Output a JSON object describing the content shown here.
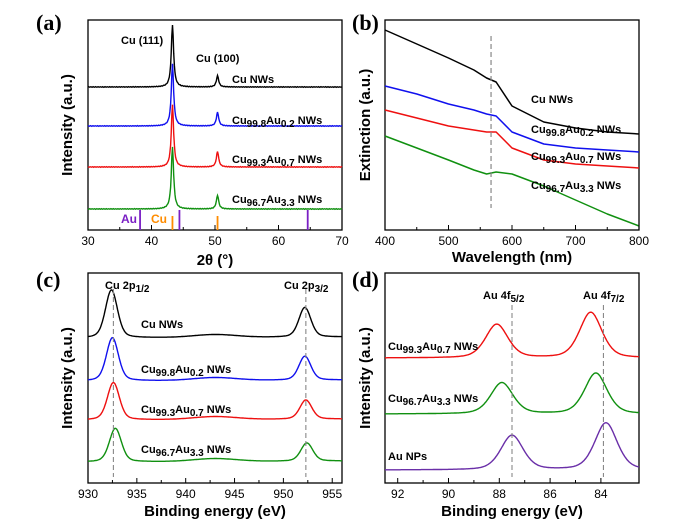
{
  "chart_data": [
    {
      "type": "line",
      "panel_label": "(a)",
      "xlabel": "2θ (°)",
      "ylabel": "Intensity (a.u.)",
      "xlim": [
        30,
        70
      ],
      "xticks": [
        "30",
        "40",
        "50",
        "60",
        "70"
      ],
      "peak_labels": [
        "Cu (111)",
        "Cu (100)"
      ],
      "series": [
        {
          "name": "Cu NWs",
          "color": "#000000",
          "peaks": [
            {
              "x": 43.3,
              "height": 1.0
            },
            {
              "x": 50.4,
              "height": 0.18
            }
          ]
        },
        {
          "name": "Cu99.8Au0.2 NWs",
          "color": "#1010ee",
          "peaks": [
            {
              "x": 43.3,
              "height": 1.0
            },
            {
              "x": 50.4,
              "height": 0.22
            }
          ]
        },
        {
          "name": "Cu99.3Au0.7 NWs",
          "color": "#ee1010",
          "peaks": [
            {
              "x": 43.3,
              "height": 1.0
            },
            {
              "x": 50.4,
              "height": 0.25
            }
          ]
        },
        {
          "name": "Cu96.7Au3.3 NWs",
          "color": "#109010",
          "peaks": [
            {
              "x": 43.3,
              "height": 1.0
            },
            {
              "x": 50.4,
              "height": 0.22
            }
          ]
        }
      ],
      "reference_lines": [
        {
          "name": "Au",
          "color": "#7a1fc4",
          "positions": [
            38.2,
            44.4,
            64.6
          ]
        },
        {
          "name": "Cu",
          "color": "#ff8c00",
          "positions": [
            43.3,
            50.4
          ]
        }
      ]
    },
    {
      "type": "line",
      "panel_label": "(b)",
      "xlabel": "Wavelength (nm)",
      "ylabel": "Extinction (a.u.)",
      "xlim": [
        400,
        800
      ],
      "xticks": [
        "400",
        "500",
        "600",
        "700",
        "800"
      ],
      "dashed_line_x": 567,
      "series": [
        {
          "name": "Cu NWs",
          "color": "#000000",
          "x": [
            400,
            450,
            500,
            540,
            560,
            575,
            600,
            650,
            700,
            750,
            800
          ],
          "y": [
            1.0,
            0.93,
            0.86,
            0.8,
            0.76,
            0.74,
            0.62,
            0.54,
            0.51,
            0.49,
            0.48
          ]
        },
        {
          "name": "Cu99.8Au0.2 NWs",
          "color": "#1010ee",
          "x": [
            400,
            450,
            500,
            540,
            560,
            575,
            600,
            650,
            700,
            750,
            800
          ],
          "y": [
            0.72,
            0.68,
            0.63,
            0.6,
            0.58,
            0.57,
            0.49,
            0.43,
            0.41,
            0.4,
            0.39
          ]
        },
        {
          "name": "Cu99.3Au0.7 NWs",
          "color": "#ee1010",
          "x": [
            400,
            450,
            500,
            540,
            560,
            575,
            600,
            650,
            700,
            750,
            800
          ],
          "y": [
            0.6,
            0.56,
            0.52,
            0.5,
            0.49,
            0.49,
            0.41,
            0.35,
            0.33,
            0.32,
            0.31
          ]
        },
        {
          "name": "Cu96.7Au3.3 NWs",
          "color": "#109010",
          "x": [
            400,
            450,
            500,
            540,
            560,
            575,
            600,
            650,
            700,
            750,
            800
          ],
          "y": [
            0.47,
            0.41,
            0.35,
            0.3,
            0.28,
            0.29,
            0.28,
            0.22,
            0.15,
            0.08,
            0.02
          ]
        }
      ]
    },
    {
      "type": "line",
      "panel_label": "(c)",
      "xlabel": "Binding energy (eV)",
      "ylabel": "Intensity (a.u.)",
      "xlim": [
        930,
        956
      ],
      "x_reversed": false,
      "xticks": [
        "930",
        "935",
        "940",
        "945",
        "950",
        "955"
      ],
      "peak_labels": [
        "Cu 2p1/2",
        "Cu 2p3/2"
      ],
      "dashed_lines_x": [
        932.6,
        952.3
      ],
      "series": [
        {
          "name": "Cu NWs",
          "color": "#000000",
          "peaks": [
            {
              "x": 932.4,
              "height": 1.0
            },
            {
              "x": 952.2,
              "height": 0.62
            }
          ]
        },
        {
          "name": "Cu99.8Au0.2 NWs",
          "color": "#1010ee",
          "peaks": [
            {
              "x": 932.5,
              "height": 0.9
            },
            {
              "x": 952.2,
              "height": 0.5
            }
          ]
        },
        {
          "name": "Cu99.3Au0.7 NWs",
          "color": "#ee1010",
          "peaks": [
            {
              "x": 932.6,
              "height": 0.78
            },
            {
              "x": 952.3,
              "height": 0.4
            }
          ]
        },
        {
          "name": "Cu96.7Au3.3 NWs",
          "color": "#109010",
          "peaks": [
            {
              "x": 932.8,
              "height": 0.7
            },
            {
              "x": 952.4,
              "height": 0.38
            }
          ]
        }
      ]
    },
    {
      "type": "line",
      "panel_label": "(d)",
      "xlabel": "Binding energy (eV)",
      "ylabel": "Intensity (a.u.)",
      "xlim": [
        92.5,
        82.5
      ],
      "x_reversed": true,
      "xticks": [
        "92",
        "90",
        "88",
        "86",
        "84"
      ],
      "peak_labels": [
        "Au 4f5/2",
        "Au 4f7/2"
      ],
      "dashed_lines_x": [
        87.5,
        83.9
      ],
      "series": [
        {
          "name": "Cu99.3Au0.7 NWs",
          "color": "#ee1010",
          "peaks": [
            {
              "x": 88.1,
              "height": 0.7
            },
            {
              "x": 84.4,
              "height": 0.95
            }
          ]
        },
        {
          "name": "Cu96.7Au3.3 NWs",
          "color": "#109010",
          "peaks": [
            {
              "x": 87.9,
              "height": 0.65
            },
            {
              "x": 84.2,
              "height": 0.85
            }
          ]
        },
        {
          "name": "Au NPs",
          "color": "#6a2fa8",
          "peaks": [
            {
              "x": 87.5,
              "height": 0.72
            },
            {
              "x": 83.8,
              "height": 0.98
            }
          ]
        }
      ]
    }
  ]
}
